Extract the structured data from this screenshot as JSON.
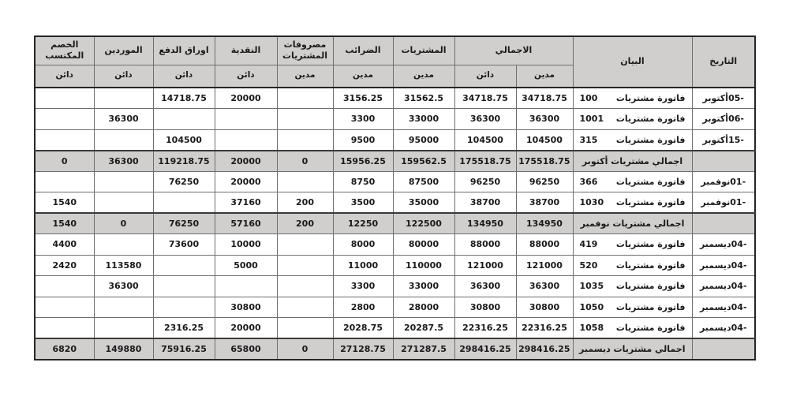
{
  "table": {
    "title_semantic": "purchases-journal",
    "colors": {
      "header_fill": "#d1cece",
      "summary_fill": "#d1cece",
      "grid_line": "#6e6e6e",
      "frame_line": "#262626",
      "text": "#1a1a1a",
      "page_background": "#ffffff"
    },
    "header": {
      "date": "التاريخ",
      "statement": "البيان",
      "total": "الاجمالي",
      "purchases": "المشتريات",
      "taxes": "الضرائب",
      "purchase_expenses": "مصروفات المشتريات",
      "cash": "النقدية",
      "notes_payable": "اوراق الدفع",
      "suppliers": "الموردين",
      "earned_discount": "الخصم المكتسب",
      "debit_label": "مدين",
      "credit_label": "دائن"
    },
    "rows": [
      {
        "type": "invoice",
        "date": "-05أكتوبر",
        "desc": "فاتورة مشتريات",
        "desc_num": "100",
        "total_debit": "34718.75",
        "total_credit": "34718.75",
        "purchases": "31562.5",
        "taxes": "3156.25",
        "expenses": "",
        "cash": "20000",
        "notes": "14718.75",
        "suppliers": "",
        "discount": ""
      },
      {
        "type": "invoice",
        "date": "-06أكتوبر",
        "desc": "فاتورة مشتريات",
        "desc_num": "1001",
        "total_debit": "36300",
        "total_credit": "36300",
        "purchases": "33000",
        "taxes": "3300",
        "expenses": "",
        "cash": "",
        "notes": "",
        "suppliers": "36300",
        "discount": ""
      },
      {
        "type": "invoice",
        "date": "-15أكتوبر",
        "desc": "فاتورة مشتريات",
        "desc_num": "315",
        "total_debit": "104500",
        "total_credit": "104500",
        "purchases": "95000",
        "taxes": "9500",
        "expenses": "",
        "cash": "",
        "notes": "104500",
        "suppliers": "",
        "discount": ""
      },
      {
        "type": "summary",
        "date": "",
        "desc": "اجمالي مشتريات أكتوبر",
        "desc_num": "",
        "total_debit": "175518.75",
        "total_credit": "175518.75",
        "purchases": "159562.5",
        "taxes": "15956.25",
        "expenses": "0",
        "cash": "20000",
        "notes": "119218.75",
        "suppliers": "36300",
        "discount": "0"
      },
      {
        "type": "invoice",
        "date": "-01نوفمبر",
        "desc": "فاتورة مشتريات",
        "desc_num": "366",
        "total_debit": "96250",
        "total_credit": "96250",
        "purchases": "87500",
        "taxes": "8750",
        "expenses": "",
        "cash": "20000",
        "notes": "76250",
        "suppliers": "",
        "discount": ""
      },
      {
        "type": "invoice",
        "date": "-01نوفمبر",
        "desc": "فاتورة مشتريات",
        "desc_num": "1030",
        "total_debit": "38700",
        "total_credit": "38700",
        "purchases": "35000",
        "taxes": "3500",
        "expenses": "200",
        "cash": "37160",
        "notes": "",
        "suppliers": "",
        "discount": "1540"
      },
      {
        "type": "summary",
        "date": "",
        "desc": "اجمالي مشتريات نوفمبر",
        "desc_num": "",
        "total_debit": "134950",
        "total_credit": "134950",
        "purchases": "122500",
        "taxes": "12250",
        "expenses": "200",
        "cash": "57160",
        "notes": "76250",
        "suppliers": "0",
        "discount": "1540"
      },
      {
        "type": "invoice",
        "date": "-04ديسمبر",
        "desc": "فاتورة مشتريات",
        "desc_num": "419",
        "total_debit": "88000",
        "total_credit": "88000",
        "purchases": "80000",
        "taxes": "8000",
        "expenses": "",
        "cash": "10000",
        "notes": "73600",
        "suppliers": "",
        "discount": "4400"
      },
      {
        "type": "invoice",
        "date": "-04ديسمبر",
        "desc": "فاتورة مشتريات",
        "desc_num": "520",
        "total_debit": "121000",
        "total_credit": "121000",
        "purchases": "110000",
        "taxes": "11000",
        "expenses": "",
        "cash": "5000",
        "notes": "",
        "suppliers": "113580",
        "discount": "2420"
      },
      {
        "type": "invoice",
        "date": "-04ديسمبر",
        "desc": "فاتورة مشتريات",
        "desc_num": "1035",
        "total_debit": "36300",
        "total_credit": "36300",
        "purchases": "33000",
        "taxes": "3300",
        "expenses": "",
        "cash": "",
        "notes": "",
        "suppliers": "36300",
        "discount": ""
      },
      {
        "type": "invoice",
        "date": "-04ديسمبر",
        "desc": "فاتورة مشتريات",
        "desc_num": "1050",
        "total_debit": "30800",
        "total_credit": "30800",
        "purchases": "28000",
        "taxes": "2800",
        "expenses": "",
        "cash": "30800",
        "notes": "",
        "suppliers": "",
        "discount": ""
      },
      {
        "type": "invoice",
        "date": "-04ديسمبر",
        "desc": "فاتورة مشتريات",
        "desc_num": "1058",
        "total_debit": "22316.25",
        "total_credit": "22316.25",
        "purchases": "20287.5",
        "taxes": "2028.75",
        "expenses": "",
        "cash": "20000",
        "notes": "2316.25",
        "suppliers": "",
        "discount": ""
      },
      {
        "type": "summary",
        "date": "",
        "desc": "اجمالي مشتريات ديسمبر",
        "desc_num": "",
        "total_debit": "298416.25",
        "total_credit": "298416.25",
        "purchases": "271287.5",
        "taxes": "27128.75",
        "expenses": "0",
        "cash": "65800",
        "notes": "75916.25",
        "suppliers": "149880",
        "discount": "6820"
      }
    ]
  }
}
